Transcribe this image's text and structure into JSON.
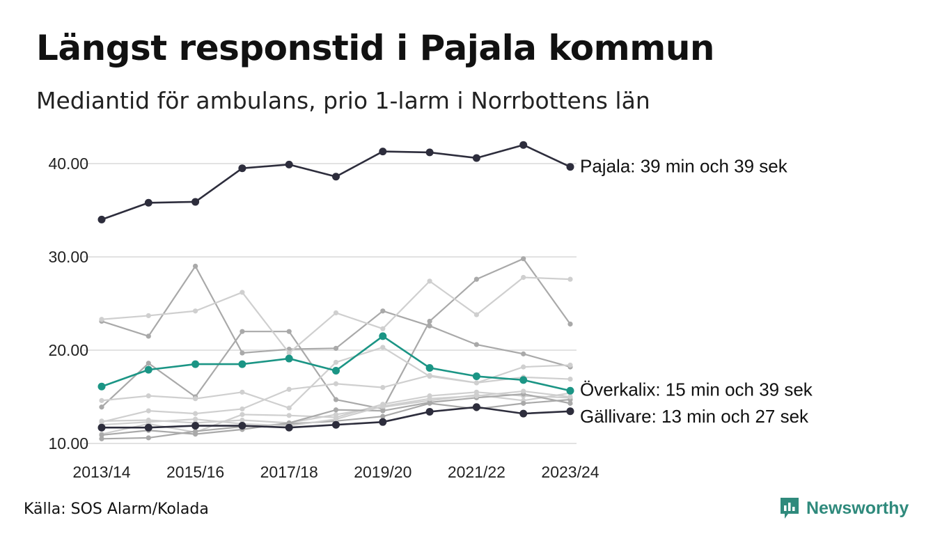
{
  "header": {
    "title": "Längst responstid i Pajala kommun",
    "subtitle": "Mediantid för ambulans, prio 1-larm i Norrbottens län"
  },
  "footer": {
    "source": "Källa: SOS Alarm/Kolada",
    "brand": "Newsworthy"
  },
  "colors": {
    "highlight_dark": "#2d2d3c",
    "highlight_teal": "#1b9585",
    "background_lines": [
      "#a9a9a9",
      "#cfcfcf"
    ],
    "grid": "#e2e2e2"
  },
  "chart_data": {
    "type": "line",
    "title": "Längst responstid i Pajala kommun",
    "subtitle": "Mediantid för ambulans, prio 1-larm i Norrbottens län",
    "x": [
      "2013/14",
      "2014/15",
      "2015/16",
      "2016/17",
      "2017/18",
      "2018/19",
      "2019/20",
      "2020/21",
      "2021/22",
      "2022/23",
      "2023/24"
    ],
    "x_tick_labels": [
      "2013/14",
      "2015/16",
      "2017/18",
      "2019/20",
      "2021/22",
      "2023/24"
    ],
    "y_ticks": [
      "10.00",
      "20.00",
      "30.00",
      "40.00"
    ],
    "ylim": [
      10,
      42
    ],
    "grid": "horizontal",
    "series": [
      {
        "name": "Pajala",
        "label": "Pajala: 39 min och 39 sek",
        "highlight": true,
        "color": "#2d2d3c",
        "values": [
          34.0,
          35.8,
          35.9,
          39.5,
          39.9,
          38.6,
          41.3,
          41.2,
          40.6,
          42.0,
          39.65
        ]
      },
      {
        "name": "Överkalix",
        "label": "Överkalix: 15 min och 39 sek",
        "highlight": true,
        "color": "#1b9585",
        "values": [
          16.1,
          17.9,
          18.5,
          18.5,
          19.1,
          17.8,
          21.5,
          18.1,
          17.2,
          16.8,
          15.65
        ]
      },
      {
        "name": "Gällivare",
        "label": "Gällivare: 13 min och 27 sek",
        "highlight": true,
        "color": "#2d2d3c",
        "values": [
          11.7,
          11.7,
          11.9,
          11.9,
          11.7,
          12.0,
          12.3,
          13.4,
          13.9,
          13.2,
          13.45
        ]
      },
      {
        "highlight": false,
        "color": "#a9a9a9",
        "values": [
          23.1,
          21.5,
          29.0,
          19.7,
          20.1,
          20.2,
          24.2,
          22.6,
          20.6,
          19.6,
          18.2
        ]
      },
      {
        "highlight": false,
        "color": "#a9a9a9",
        "values": [
          13.9,
          18.6,
          15.0,
          22.0,
          22.0,
          14.7,
          13.7,
          23.1,
          27.6,
          29.8,
          22.8
        ]
      },
      {
        "highlight": false,
        "color": "#cfcfcf",
        "values": [
          23.3,
          23.7,
          24.2,
          26.2,
          19.7,
          24.0,
          22.3,
          27.4,
          23.8,
          27.8,
          27.6
        ]
      },
      {
        "highlight": false,
        "color": "#cfcfcf",
        "values": [
          14.6,
          15.1,
          14.8,
          15.5,
          13.8,
          18.7,
          20.3,
          17.2,
          16.5,
          18.2,
          18.4
        ]
      },
      {
        "highlight": false,
        "color": "#cfcfcf",
        "values": [
          12.3,
          13.5,
          13.2,
          13.7,
          15.8,
          16.4,
          16.0,
          17.3,
          16.5,
          17.1,
          16.9
        ]
      },
      {
        "highlight": false,
        "color": "#cfcfcf",
        "values": [
          11.0,
          12.1,
          11.2,
          13.1,
          13.0,
          12.8,
          14.2,
          15.1,
          15.5,
          15.1,
          14.9
        ]
      },
      {
        "highlight": false,
        "color": "#cfcfcf",
        "values": [
          12.4,
          12.5,
          12.2,
          12.5,
          12.2,
          13.1,
          13.9,
          14.6,
          15.2,
          14.6,
          15.4
        ]
      },
      {
        "highlight": false,
        "color": "#a9a9a9",
        "values": [
          10.9,
          11.4,
          11.0,
          11.5,
          12.2,
          13.6,
          13.5,
          14.4,
          14.9,
          15.3,
          14.3
        ]
      },
      {
        "highlight": false,
        "color": "#a9a9a9",
        "values": [
          10.5,
          10.6,
          11.3,
          11.8,
          12.1,
          12.4,
          12.9,
          14.3,
          13.7,
          14.3,
          14.7
        ]
      },
      {
        "highlight": false,
        "color": "#cfcfcf",
        "values": [
          12.0,
          12.3,
          12.6,
          12.1,
          11.9,
          12.6,
          14.0,
          14.8,
          15.1,
          15.6,
          15.0
        ]
      }
    ]
  }
}
